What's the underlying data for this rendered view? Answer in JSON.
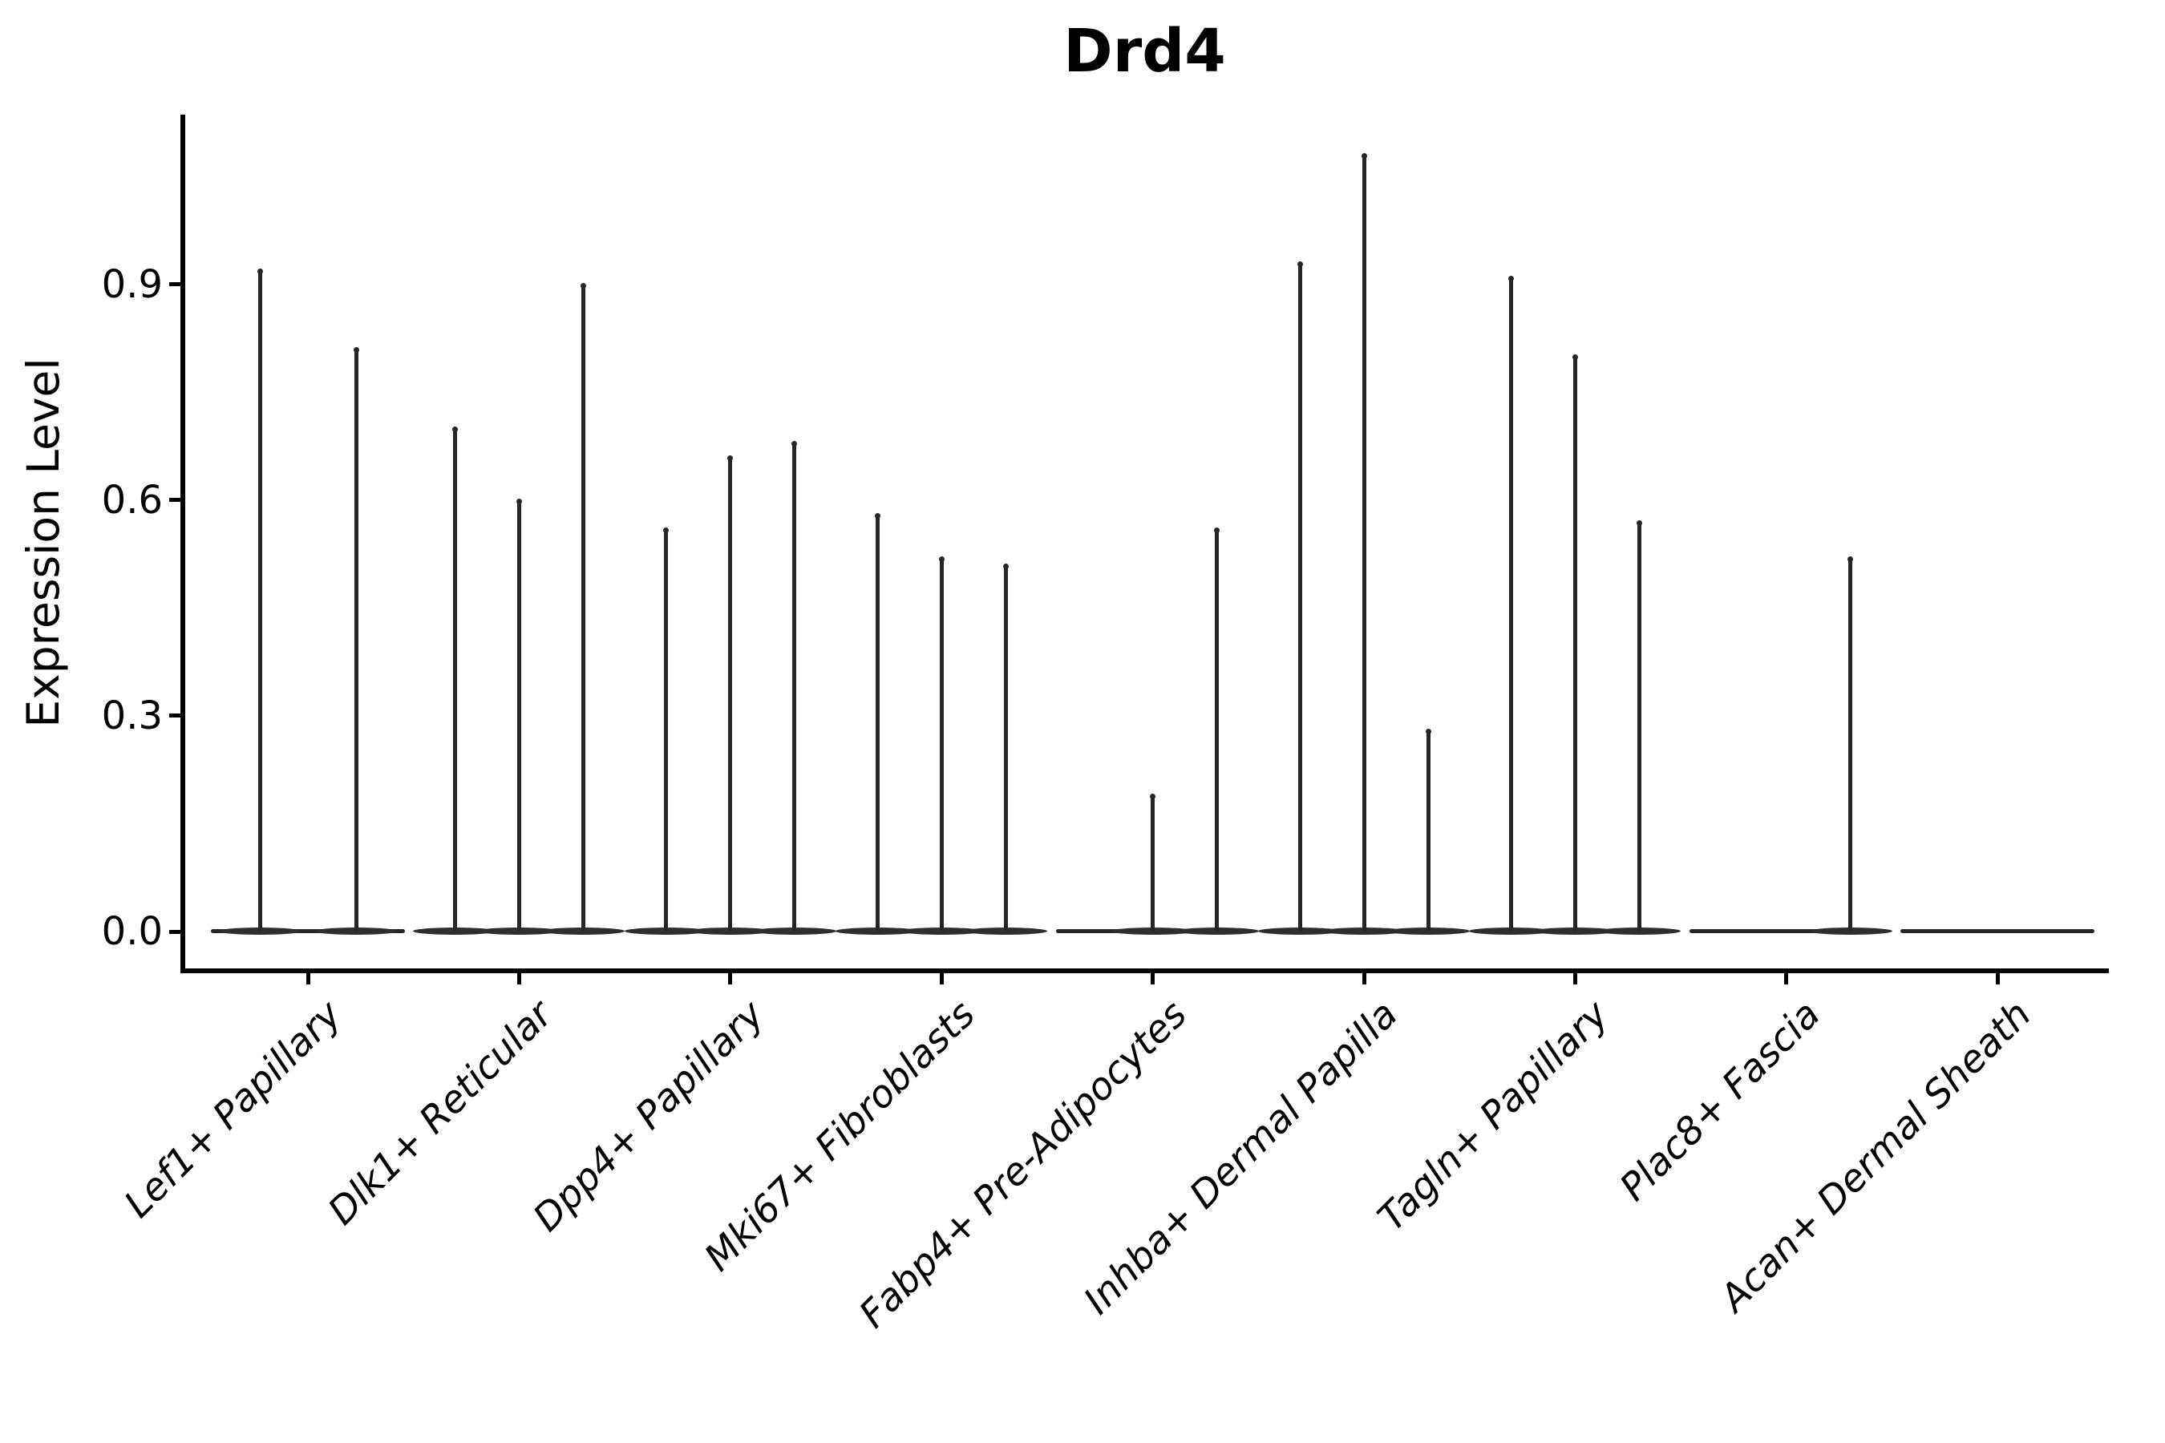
{
  "title": "Drd4",
  "axes": {
    "ylabel": "Expression Level",
    "ytick_labels": [
      "0.0",
      "0.3",
      "0.6",
      "0.9"
    ],
    "ytick_values": [
      0.0,
      0.3,
      0.6,
      0.9
    ]
  },
  "colors": {
    "background": "#ffffff",
    "axis": "#000000",
    "text": "#000000",
    "violin": "#262626"
  },
  "chart_data": {
    "type": "violin",
    "title": "Drd4",
    "xlabel": "",
    "ylabel": "Expression Level",
    "yticks": [
      0.0,
      0.3,
      0.6,
      0.9
    ],
    "ytick_labels": [
      "0.0",
      "0.3",
      "0.6",
      "0.9"
    ],
    "ylim": [
      -0.054,
      1.136
    ],
    "grid": false,
    "legend": false,
    "x_label_rotation_deg": 45,
    "description": "Needle-thin violin plot of gene expression; every category has a flat band at 0 with narrow spikes whose tops are the per-violin maximum expression.",
    "categories": [
      "Lef1+ Papillary",
      "Dlk1+ Reticular",
      "Dpp4+ Papillary",
      "Mki67+ Fibroblasts",
      "Fabp4+ Pre-Adipocytes",
      "Inhba+ Dermal Papilla",
      "Tagln+ Papillary",
      "Plac8+ Fascia",
      "Acan+ Dermal Sheath"
    ],
    "series": [
      {
        "category": "Lef1+ Papillary",
        "baseline": 0,
        "violins": [
          {
            "slot": "left",
            "offset": -60,
            "peak": 0.92
          },
          {
            "slot": "right",
            "offset": 60,
            "peak": 0.81
          }
        ]
      },
      {
        "category": "Dlk1+ Reticular",
        "baseline": 0,
        "violins": [
          {
            "slot": "left",
            "offset": -80,
            "peak": 0.7
          },
          {
            "slot": "center",
            "offset": 0,
            "peak": 0.6
          },
          {
            "slot": "right",
            "offset": 80,
            "peak": 0.9
          }
        ]
      },
      {
        "category": "Dpp4+ Papillary",
        "baseline": 0,
        "violins": [
          {
            "slot": "left",
            "offset": -80,
            "peak": 0.56
          },
          {
            "slot": "center",
            "offset": 0,
            "peak": 0.66
          },
          {
            "slot": "right",
            "offset": 80,
            "peak": 0.68
          }
        ]
      },
      {
        "category": "Mki67+ Fibroblasts",
        "baseline": 0,
        "violins": [
          {
            "slot": "left",
            "offset": -80,
            "peak": 0.58
          },
          {
            "slot": "center",
            "offset": 0,
            "peak": 0.52
          },
          {
            "slot": "right",
            "offset": 80,
            "peak": 0.51
          }
        ]
      },
      {
        "category": "Fabp4+ Pre-Adipocytes",
        "baseline": 0,
        "violins": [
          {
            "slot": "center",
            "offset": 0,
            "peak": 0.19
          },
          {
            "slot": "right",
            "offset": 80,
            "peak": 0.56
          }
        ]
      },
      {
        "category": "Inhba+ Dermal Papilla",
        "baseline": 0,
        "violins": [
          {
            "slot": "left",
            "offset": -80,
            "peak": 0.93
          },
          {
            "slot": "center",
            "offset": 0,
            "peak": 1.08
          },
          {
            "slot": "right",
            "offset": 80,
            "peak": 0.28
          }
        ]
      },
      {
        "category": "Tagln+ Papillary",
        "baseline": 0,
        "violins": [
          {
            "slot": "left",
            "offset": -80,
            "peak": 0.91
          },
          {
            "slot": "center",
            "offset": 0,
            "peak": 0.8
          },
          {
            "slot": "right",
            "offset": 80,
            "peak": 0.57
          }
        ]
      },
      {
        "category": "Plac8+ Fascia",
        "baseline": 0,
        "violins": [
          {
            "slot": "right",
            "offset": 80,
            "peak": 0.52
          }
        ]
      },
      {
        "category": "Acan+ Dermal Sheath",
        "baseline": 0,
        "violins": []
      }
    ]
  }
}
